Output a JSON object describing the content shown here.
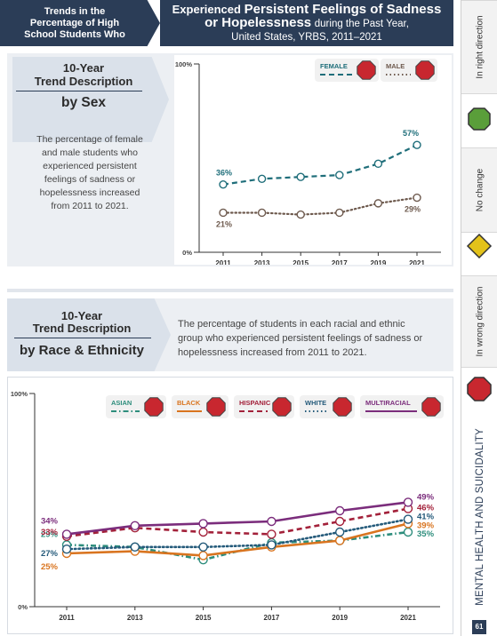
{
  "header": {
    "left_lines": [
      "Trends in the",
      "Percentage of High",
      "School Students Who"
    ],
    "title_plain_1": "Experienced",
    "title_bold": "Persistent Feelings of Sadness",
    "title_bold_2": "or Hopelessness",
    "title_plain_2": "during the Past Year,",
    "subtitle": "United States, YRBS, 2011–2021"
  },
  "sidebar": {
    "right_direction": "In right direction",
    "no_change": "No change",
    "wrong_direction": "In wrong direction",
    "section_title": "MENTAL HEALTH AND SUICIDALITY",
    "page_number": "61",
    "colors": {
      "green": "#5a9e3a",
      "yellow": "#e3c21a",
      "red": "#c8272f"
    }
  },
  "section_sex": {
    "heading_1": "10-Year",
    "heading_2": "Trend Description",
    "heading_3": "by Sex",
    "text_lines": [
      "The percentage of female",
      "and male students who",
      "experienced persistent",
      "feelings of sadness or",
      "hopelessness increased",
      "from 2011 to 2021."
    ]
  },
  "section_race": {
    "heading_1": "10-Year",
    "heading_2": "Trend Description",
    "heading_3": "by Race & Ethnicity",
    "text_lines": [
      "The percentage of students in each racial and ethnic",
      "group who experienced persistent feelings of sadness or",
      "hopelessness increased from 2011 to 2021."
    ]
  },
  "chart_data": [
    {
      "type": "line",
      "x": [
        2011,
        2013,
        2015,
        2017,
        2019,
        2021
      ],
      "ylim": [
        0,
        100
      ],
      "ytick_labels": [
        "0%",
        "100%"
      ],
      "series": [
        {
          "name": "FEMALE",
          "color": "#1f6e7a",
          "style": "dashed",
          "values": [
            36,
            39,
            40,
            41,
            47,
            57
          ],
          "start_label": "36%",
          "end_label": "57%"
        },
        {
          "name": "MALE",
          "color": "#6e5a4e",
          "style": "dotted",
          "values": [
            21,
            21,
            20,
            21,
            26,
            29
          ],
          "start_label": "21%",
          "end_label": "29%"
        }
      ],
      "legend_icon_color": "#c8272f"
    },
    {
      "type": "line",
      "x": [
        2011,
        2013,
        2015,
        2017,
        2019,
        2021
      ],
      "ylim": [
        0,
        100
      ],
      "ytick_labels": [
        "0%",
        "100%"
      ],
      "series": [
        {
          "name": "ASIAN",
          "color": "#2d8d7c",
          "style": "dashdot",
          "values": [
            29,
            28,
            22,
            30,
            31,
            35
          ],
          "start_label": "29%",
          "end_label": "35%"
        },
        {
          "name": "BLACK",
          "color": "#d9741f",
          "style": "solid",
          "values": [
            25,
            26,
            24,
            28,
            31,
            39
          ],
          "start_label": "25%",
          "end_label": "39%"
        },
        {
          "name": "HISPANIC",
          "color": "#a3213a",
          "style": "dashed",
          "values": [
            33,
            37,
            35,
            34,
            40,
            46
          ],
          "start_label": "33%",
          "end_label": "46%"
        },
        {
          "name": "WHITE",
          "color": "#245a7a",
          "style": "dotted",
          "values": [
            27,
            28,
            28,
            29,
            35,
            41
          ],
          "start_label": "27%",
          "end_label": "41%"
        },
        {
          "name": "MULTIRACIAL",
          "color": "#7b2d7c",
          "style": "solid",
          "values": [
            34,
            38,
            39,
            40,
            45,
            49
          ],
          "start_label": "34%",
          "end_label": "49%"
        }
      ],
      "legend_icon_color": "#c8272f"
    }
  ]
}
